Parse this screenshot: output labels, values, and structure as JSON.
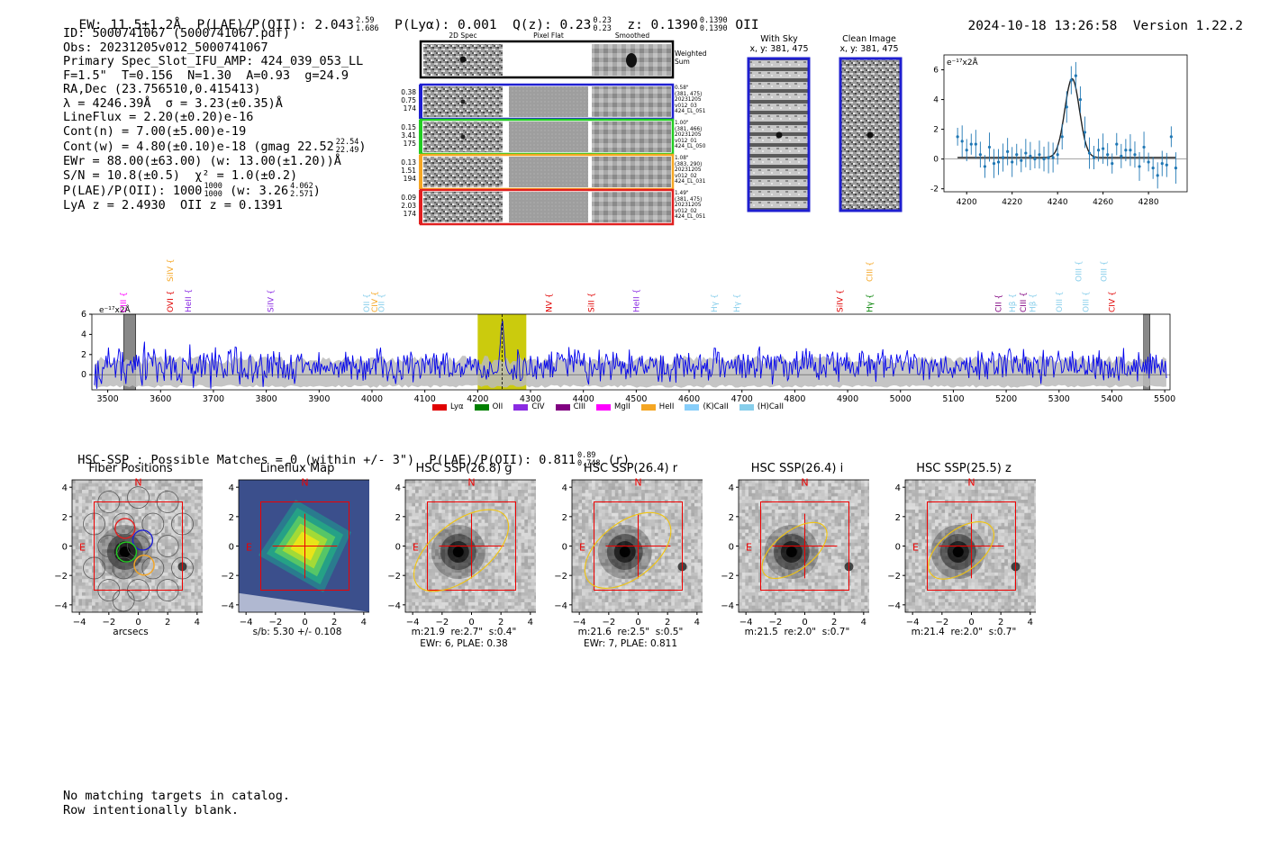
{
  "header": {
    "ew": "EW: 11.5±1.2Å",
    "plae_label": "P(LAE)/P(OII): 2.043",
    "plae_hi": "2.59",
    "plae_lo": "1.686",
    "plya": "P(Lyα): 0.001",
    "qz_label": "Q(z): 0.23",
    "qz_hi": "0.23",
    "qz_lo": "0.23",
    "z_label": "z: 0.1390",
    "z_hi": "0.1390",
    "z_lo": "0.1390",
    "z_line": "OII",
    "timestamp": "2024-10-18 13:26:58",
    "version": "Version 1.22.2"
  },
  "info": {
    "id": "ID: 5000741067 (5000741067.pdf)",
    "obs": "Obs: 20231205v012_5000741067",
    "slot": "Primary Spec_Slot_IFU_AMP: 424_039_053_LL",
    "params": "F=1.5\"  T=0.156  N=1.30  A=0.93  g=24.9",
    "radec": "RA,Dec (23.756510,0.415413)",
    "lambda": "λ = 4246.39Å  σ = 3.23(±0.35)Å",
    "lineflux": "LineFlux = 2.20(±0.20)e-16",
    "contn": "Cont(n) = 7.00(±5.00)e-19",
    "contw": "Cont(w) = 4.80(±0.10)e-18 (gmag 22.52",
    "contw_hi": "22.54",
    "contw_lo": "22.49",
    "contw_end": ")",
    "ewr": "EWr = 88.00(±63.00) (w: 13.00(±1.20))Å",
    "sn": "S/N = 10.8(±0.5)  χ² = 1.0(±0.2)",
    "plae": "P(LAE)/P(OII): 1000",
    "plae_hi": "1000",
    "plae_lo": "1000",
    "plae_w": "(w: 3.26",
    "plae_w_hi": "4.062",
    "plae_w_lo": "2.571",
    "plae_w_end": ")",
    "lyaz": "LyA z = 2.4930  OII z = 0.1391"
  },
  "cutouts": {
    "columns": [
      "2D Spec",
      "Pixel Flat",
      "Smoothed"
    ],
    "weighted_label": "Weighted\nSum",
    "rows": [
      {
        "vals": [
          "0.38",
          "0.75",
          "174"
        ],
        "stamp": [
          "0.58\"",
          "(381, 475)",
          "20231205",
          "v012_03",
          "424_LL_051"
        ],
        "color": "#1f1fd0"
      },
      {
        "vals": [
          "0.15",
          "3.41",
          "175"
        ],
        "stamp": [
          "1.00\"",
          "(381, 466)",
          "20231205",
          "v012_01",
          "424_LL_050"
        ],
        "color": "#22cc22"
      },
      {
        "vals": [
          "0.13",
          "1.51",
          "194"
        ],
        "stamp": [
          "1.08\"",
          "(383, 290)",
          "20231205",
          "v012_02",
          "424_LL_031"
        ],
        "color": "#f5a623"
      },
      {
        "vals": [
          "0.09",
          "2.03",
          "174"
        ],
        "stamp": [
          "1.49\"",
          "(381, 475)",
          "20231205",
          "v012_02",
          "424_LL_051"
        ],
        "color": "#e02020"
      }
    ]
  },
  "sky": {
    "with_sky_title": "With Sky",
    "with_sky_coords": "x, y: 381, 475",
    "clean_title": "Clean Image",
    "clean_coords": "x, y: 381, 475"
  },
  "legend": [
    {
      "label": "Lyα",
      "color": "#e00000"
    },
    {
      "label": "OII",
      "color": "#008000"
    },
    {
      "label": "CIV",
      "color": "#8a2be2"
    },
    {
      "label": "CIII",
      "color": "#800080"
    },
    {
      "label": "MgII",
      "color": "#ff00ff"
    },
    {
      "label": "HeII",
      "color": "#f5a623"
    },
    {
      "label": "(K)CaII",
      "color": "#87cefa"
    },
    {
      "label": "(H)CaII",
      "color": "#87ceeb"
    }
  ],
  "line_labels": [
    {
      "label": "CIII",
      "w": 3530,
      "color": "#ff00ff",
      "row": 1
    },
    {
      "label": "SiIV",
      "w": 3618,
      "color": "#f5a623",
      "row": 0
    },
    {
      "label": "OVI",
      "w": 3618,
      "color": "#e00000",
      "row": 1
    },
    {
      "label": "HeII",
      "w": 3652,
      "color": "#8a2be2",
      "row": 1
    },
    {
      "label": "SiIV",
      "w": 3808,
      "color": "#8a2be2",
      "row": 1
    },
    {
      "label": "OII",
      "w": 3990,
      "color": "#87ceeb",
      "row": 1
    },
    {
      "label": "CIV",
      "w": 4005,
      "color": "#f5a623",
      "row": 1
    },
    {
      "label": "OII",
      "w": 4018,
      "color": "#87ceeb",
      "row": 1
    },
    {
      "label": "NV",
      "w": 4335,
      "color": "#e00000",
      "row": 1
    },
    {
      "label": "SiII",
      "w": 4415,
      "color": "#e00000",
      "row": 1
    },
    {
      "label": "HeII",
      "w": 4500,
      "color": "#8a2be2",
      "row": 1
    },
    {
      "label": "Hγ",
      "w": 4648,
      "color": "#87ceeb",
      "row": 1
    },
    {
      "label": "Hγ",
      "w": 4690,
      "color": "#87ceeb",
      "row": 1
    },
    {
      "label": "SiIV",
      "w": 4885,
      "color": "#e00000",
      "row": 1
    },
    {
      "label": "CIII",
      "w": 4942,
      "color": "#f5a623",
      "row": 0
    },
    {
      "label": "Hγ",
      "w": 4942,
      "color": "#008000",
      "row": 1
    },
    {
      "label": "CII",
      "w": 5185,
      "color": "#800080",
      "row": 1
    },
    {
      "label": "Hβ",
      "w": 5212,
      "color": "#87ceeb",
      "row": 1
    },
    {
      "label": "CIII",
      "w": 5232,
      "color": "#800080",
      "row": 1
    },
    {
      "label": "Hβ",
      "w": 5250,
      "color": "#87ceeb",
      "row": 1
    },
    {
      "label": "OIII",
      "w": 5300,
      "color": "#87ceeb",
      "row": 1
    },
    {
      "label": "OIII",
      "w": 5337,
      "color": "#87ceeb",
      "row": 0
    },
    {
      "label": "OIII",
      "w": 5351,
      "color": "#87ceeb",
      "row": 1
    },
    {
      "label": "OIII",
      "w": 5385,
      "color": "#87ceeb",
      "row": 0
    },
    {
      "label": "CIV",
      "w": 5400,
      "color": "#e00000",
      "row": 1
    }
  ],
  "hsc": {
    "summary": "HSC-SSP : Possible Matches = 0 (within +/- 3\")  P(LAE)/P(OII): 0.811",
    "summary_hi": "0.89",
    "summary_lo": "0.748",
    "summary_end": "(r)",
    "panels": [
      {
        "title": "Fiber Positions",
        "cap1": "arcsecs",
        "cap2": ""
      },
      {
        "title": "Lineflux Map",
        "cap1": "s/b: 5.30 +/- 0.108",
        "cap2": ""
      },
      {
        "title": "HSC SSP(26.8) g",
        "cap1": "m:21.9  re:2.7\"  s:0.4\"",
        "cap2": "EWr: 6, PLAE: 0.38"
      },
      {
        "title": "HSC SSP(26.4) r",
        "cap1": "m:21.6  re:2.5\"  s:0.5\"",
        "cap2": "EWr: 7, PLAE: 0.811"
      },
      {
        "title": "HSC SSP(26.4) i",
        "cap1": "m:21.5  re:2.0\"  s:0.7\"",
        "cap2": ""
      },
      {
        "title": "HSC SSP(25.5) z",
        "cap1": "m:21.4  re:2.0\"  s:0.7\"",
        "cap2": ""
      }
    ],
    "north": "N",
    "east": "E",
    "ticks": [
      "-4",
      "-2",
      "0",
      "2",
      "4"
    ]
  },
  "footer": {
    "line1": "No matching targets in catalog.",
    "line2": "Row intentionally blank."
  },
  "chart_data": [
    {
      "type": "scatter",
      "title": "",
      "ylabel": "e⁻¹⁷x2Å",
      "xlabel": "",
      "xlim": [
        4190,
        4297
      ],
      "ylim": [
        -2.2,
        7
      ],
      "xticks": [
        4200,
        4220,
        4240,
        4260,
        4280
      ],
      "yticks": [
        -2,
        0,
        2,
        4,
        6
      ],
      "points_x": [
        4196,
        4198,
        4200,
        4202,
        4204,
        4206,
        4208,
        4210,
        4212,
        4214,
        4216,
        4218,
        4220,
        4222,
        4224,
        4226,
        4228,
        4230,
        4232,
        4234,
        4236,
        4238,
        4240,
        4242,
        4244,
        4246,
        4248,
        4250,
        4252,
        4254,
        4256,
        4258,
        4260,
        4262,
        4264,
        4266,
        4268,
        4270,
        4272,
        4274,
        4276,
        4278,
        4280,
        4282,
        4284,
        4286,
        4288,
        4290,
        4292
      ],
      "points_y": [
        1.5,
        1.2,
        0.6,
        1.0,
        1.0,
        0.3,
        -0.5,
        0.8,
        -0.3,
        -0.2,
        0.1,
        0.5,
        -0.2,
        0.3,
        -0.1,
        0.4,
        0.2,
        0.0,
        0.3,
        0.0,
        0.1,
        0.1,
        0.3,
        1.5,
        3.5,
        5.3,
        5.6,
        4.0,
        1.8,
        0.4,
        0.1,
        0.6,
        0.7,
        0.3,
        -0.3,
        1.0,
        0.2,
        0.6,
        0.6,
        0.3,
        -0.5,
        0.8,
        -0.2,
        -0.6,
        -1.1,
        -0.3,
        -0.4,
        1.5,
        -0.6
      ],
      "model": "gaussian fit peak 5.3 at 4246.4, sigma 3.23, continuum 0.1"
    },
    {
      "type": "line",
      "title": "",
      "ylabel": "e⁻¹⁷x2Å",
      "xlim": [
        3470,
        5510
      ],
      "ylim": [
        -1.5,
        6
      ],
      "xticks": [
        3500,
        3600,
        3700,
        3800,
        3900,
        4000,
        4100,
        4200,
        4300,
        4400,
        4500,
        4600,
        4700,
        4800,
        4900,
        5000,
        5100,
        5200,
        5300,
        5400,
        5500
      ],
      "yticks": [
        0,
        2,
        4,
        6
      ],
      "highlight_range": [
        4200,
        4292
      ],
      "emission_line": 4246.39,
      "series": [
        {
          "name": "spectrum",
          "color": "#0000ff",
          "description": "noisy spectrum around 0.9 with emission peak ~5.8 at 4246"
        },
        {
          "name": "error",
          "color": "#bbbbbb",
          "description": "gray error band"
        }
      ]
    }
  ]
}
